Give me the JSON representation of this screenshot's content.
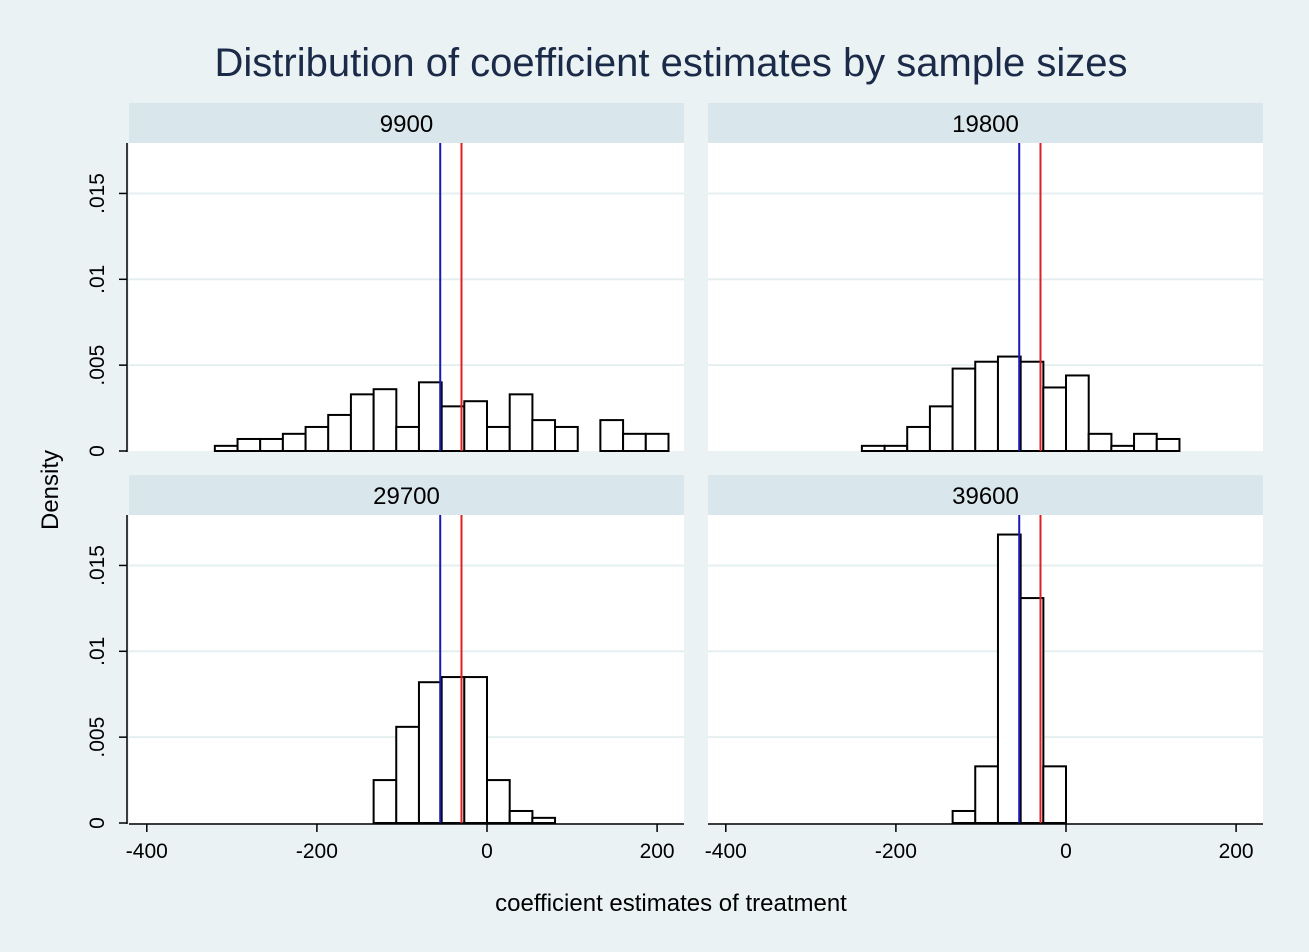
{
  "chart_data": {
    "type": "bar",
    "title": "Distribution of coefficient estimates by sample sizes",
    "xlabel": "coefficient estimates of treatment",
    "ylabel": "Density",
    "xlim": [
      -410,
      230
    ],
    "ylim": [
      0,
      0.018
    ],
    "x_ticks": [
      -400,
      -200,
      0,
      200
    ],
    "x_tick_labels": [
      "-400",
      "-200",
      "0",
      "200"
    ],
    "y_ticks": [
      0,
      0.005,
      0.01,
      0.015
    ],
    "y_tick_labels": [
      "0",
      ".005",
      ".01",
      ".015"
    ],
    "grid": true,
    "bin_width": 26.7,
    "colors": {
      "background": "#eaf2f3",
      "plot_background": "#ffffff",
      "strip": "#d9e6eb",
      "bar_fill": "#ffffff",
      "bar_stroke": "#000000",
      "blue_line": "#1a1ab0",
      "red_line": "#e02020",
      "grid": "#e6eff0"
    },
    "vlines": [
      {
        "color": "blue",
        "x": -55
      },
      {
        "color": "red",
        "x": -30
      }
    ],
    "panels": [
      {
        "label": "9900",
        "bin_starts": [
          -320,
          -293.3,
          -266.7,
          -240,
          -213.3,
          -186.7,
          -160,
          -133.3,
          -106.7,
          -80,
          -53.3,
          -26.7,
          0,
          26.7,
          53.3,
          80,
          133.3,
          160,
          186.7
        ],
        "values": [
          0.0003,
          0.0007,
          0.0007,
          0.001,
          0.0014,
          0.0021,
          0.0033,
          0.0036,
          0.0014,
          0.004,
          0.0026,
          0.0029,
          0.0014,
          0.0033,
          0.0018,
          0.0014,
          0.0018,
          0.001,
          0.001
        ]
      },
      {
        "label": "19800",
        "bin_starts": [
          -240,
          -213.3,
          -186.7,
          -160,
          -133.3,
          -106.7,
          -80,
          -53.3,
          -26.7,
          0,
          26.7,
          53.3,
          80,
          106.7
        ],
        "values": [
          0.0003,
          0.0003,
          0.0014,
          0.0026,
          0.0048,
          0.0052,
          0.0055,
          0.0052,
          0.0037,
          0.0044,
          0.001,
          0.0003,
          0.001,
          0.0007
        ]
      },
      {
        "label": "29700",
        "bin_starts": [
          -133.3,
          -106.7,
          -80,
          -53.3,
          -26.7,
          0,
          26.7,
          53.3
        ],
        "values": [
          0.0025,
          0.0056,
          0.0082,
          0.0085,
          0.0085,
          0.0025,
          0.0007,
          0.0003
        ]
      },
      {
        "label": "39600",
        "bin_starts": [
          -133.3,
          -106.7,
          -80,
          -53.3,
          -26.7
        ],
        "values": [
          0.0007,
          0.0033,
          0.0168,
          0.0131,
          0.0033
        ]
      }
    ]
  }
}
